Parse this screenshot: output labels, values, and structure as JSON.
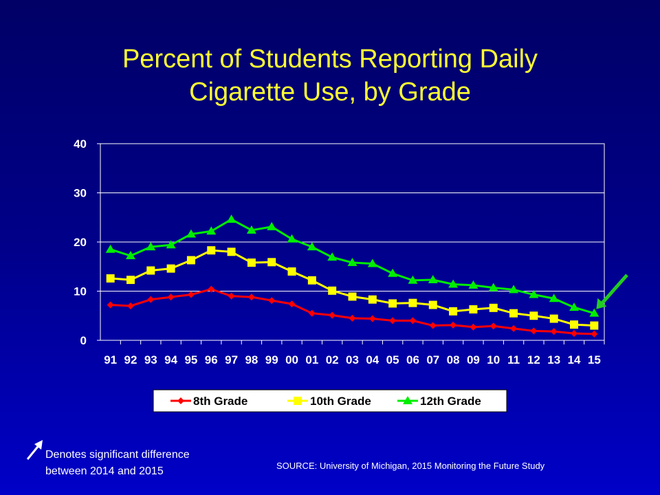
{
  "chart_data": {
    "type": "line",
    "title": "Percent of Students Reporting Daily Cigarette Use, by Grade",
    "title_lines": [
      "Percent of Students Reporting Daily",
      "Cigarette Use, by Grade"
    ],
    "categories": [
      "91",
      "92",
      "93",
      "94",
      "95",
      "96",
      "97",
      "98",
      "99",
      "00",
      "01",
      "02",
      "03",
      "04",
      "05",
      "06",
      "07",
      "08",
      "09",
      "10",
      "11",
      "12",
      "13",
      "14",
      "15"
    ],
    "yticks": [
      "0",
      "10",
      "20",
      "30",
      "40"
    ],
    "ylim": [
      0,
      40
    ],
    "grid": true,
    "legend_position": "bottom",
    "series": [
      {
        "name": "8th Grade",
        "color": "#ff0000",
        "marker": "diamond",
        "values": [
          7.2,
          7.0,
          8.3,
          8.8,
          9.3,
          10.4,
          9.0,
          8.8,
          8.1,
          7.4,
          5.5,
          5.1,
          4.5,
          4.4,
          4.0,
          4.0,
          3.0,
          3.1,
          2.7,
          2.9,
          2.4,
          1.9,
          1.8,
          1.4,
          1.3
        ]
      },
      {
        "name": "10th Grade",
        "color": "#ffff00",
        "marker": "square",
        "values": [
          12.6,
          12.3,
          14.2,
          14.6,
          16.3,
          18.3,
          18.0,
          15.8,
          15.9,
          14.0,
          12.2,
          10.1,
          8.9,
          8.3,
          7.5,
          7.6,
          7.2,
          5.9,
          6.3,
          6.6,
          5.5,
          5.0,
          4.4,
          3.2,
          3.0
        ]
      },
      {
        "name": "12th Grade",
        "color": "#00ee00",
        "marker": "triangle",
        "values": [
          18.5,
          17.2,
          19.0,
          19.4,
          21.6,
          22.2,
          24.6,
          22.4,
          23.1,
          20.6,
          19.0,
          16.9,
          15.8,
          15.6,
          13.6,
          12.2,
          12.3,
          11.4,
          11.2,
          10.7,
          10.3,
          9.3,
          8.5,
          6.7,
          5.5
        ]
      }
    ],
    "annotation": {
      "label": "significant-change-arrow",
      "series": "12th Grade",
      "category": "15",
      "color": "#22cc22"
    }
  },
  "footnote": {
    "line1": "Denotes significant difference",
    "line2": "between 2014 and 2015"
  },
  "source": "SOURCE: University of Michigan, 2015 Monitoring the Future Study"
}
